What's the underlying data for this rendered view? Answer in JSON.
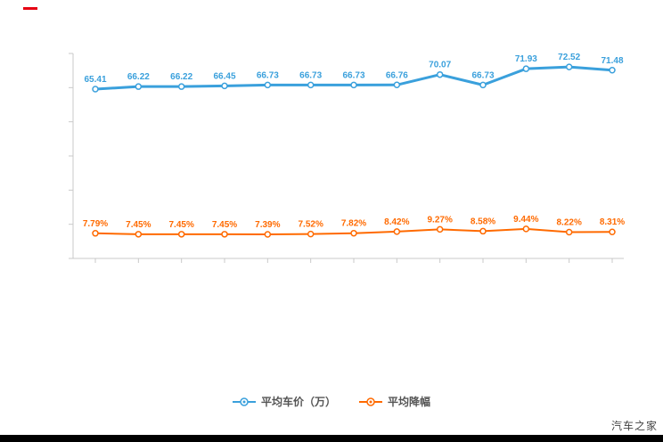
{
  "chart_data": {
    "type": "line",
    "title": "",
    "xlabel": "",
    "ylabel": "",
    "grid": false,
    "legend_position": "bottom",
    "x_labels": [
      "",
      "",
      "",
      "",
      "",
      "",
      "",
      "",
      "",
      "",
      "",
      "",
      ""
    ],
    "series": [
      {
        "name": "平均车价（万）",
        "color": "#3aa0dc",
        "values": [
          65.41,
          66.22,
          66.22,
          66.45,
          66.73,
          66.73,
          66.73,
          66.76,
          70.07,
          66.73,
          71.93,
          72.52,
          71.48
        ],
        "labels": [
          "65.41",
          "66.22",
          "66.22",
          "66.45",
          "66.73",
          "66.73",
          "66.73",
          "66.76",
          "70.07",
          "66.73",
          "71.93",
          "72.52",
          "71.48"
        ]
      },
      {
        "name": "平均降幅",
        "color": "#ff6a00",
        "values": [
          7.79,
          7.45,
          7.45,
          7.45,
          7.39,
          7.52,
          7.82,
          8.42,
          9.27,
          8.58,
          9.44,
          8.22,
          8.31
        ],
        "labels": [
          "7.79%",
          "7.45%",
          "7.45%",
          "7.45%",
          "7.39%",
          "7.52%",
          "7.82%",
          "8.42%",
          "9.27%",
          "8.58%",
          "9.44%",
          "8.22%",
          "8.31%"
        ]
      }
    ]
  },
  "watermark": "汽车之家",
  "colors": {
    "axis": "#c9c9c9",
    "legend_text": "#555555",
    "red_mark": "#e60012"
  }
}
